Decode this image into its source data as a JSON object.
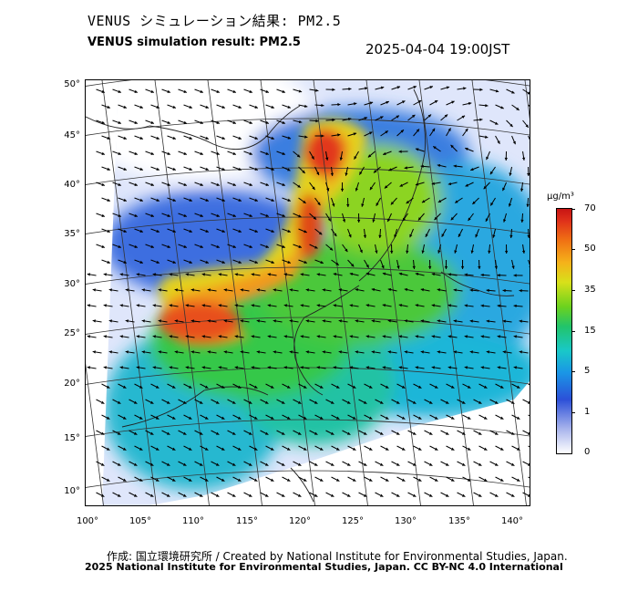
{
  "header": {
    "title_jp": "VENUS シミュレーション結果: PM2.5",
    "title_en": "VENUS simulation result: PM2.5",
    "timestamp": "2025-04-04 19:00JST"
  },
  "map": {
    "lat_labels": [
      "50°",
      "45°",
      "40°",
      "35°",
      "30°",
      "25°",
      "20°",
      "15°",
      "10°"
    ],
    "lon_labels": [
      "100°",
      "105°",
      "110°",
      "115°",
      "120°",
      "125°",
      "130°",
      "135°",
      "140°"
    ],
    "legend": {
      "unit": "μg/m³",
      "levels": [
        "70",
        "50",
        "35",
        "15",
        "5",
        "1",
        "0"
      ]
    },
    "colors": {
      "low": "#ffffff",
      "blue": "#2c50d8",
      "cyan": "#19c8c8",
      "green": "#22c46a",
      "yellow": "#d8e01a",
      "orange": "#f07214",
      "red": "#c81414"
    }
  },
  "footer": {
    "credit": "作成: 国立環境研究所 / Created by National Institute for Environmental Studies, Japan.",
    "copyright": "2025 National Institute for Environmental Studies, Japan. CC BY-NC 4.0 International"
  }
}
